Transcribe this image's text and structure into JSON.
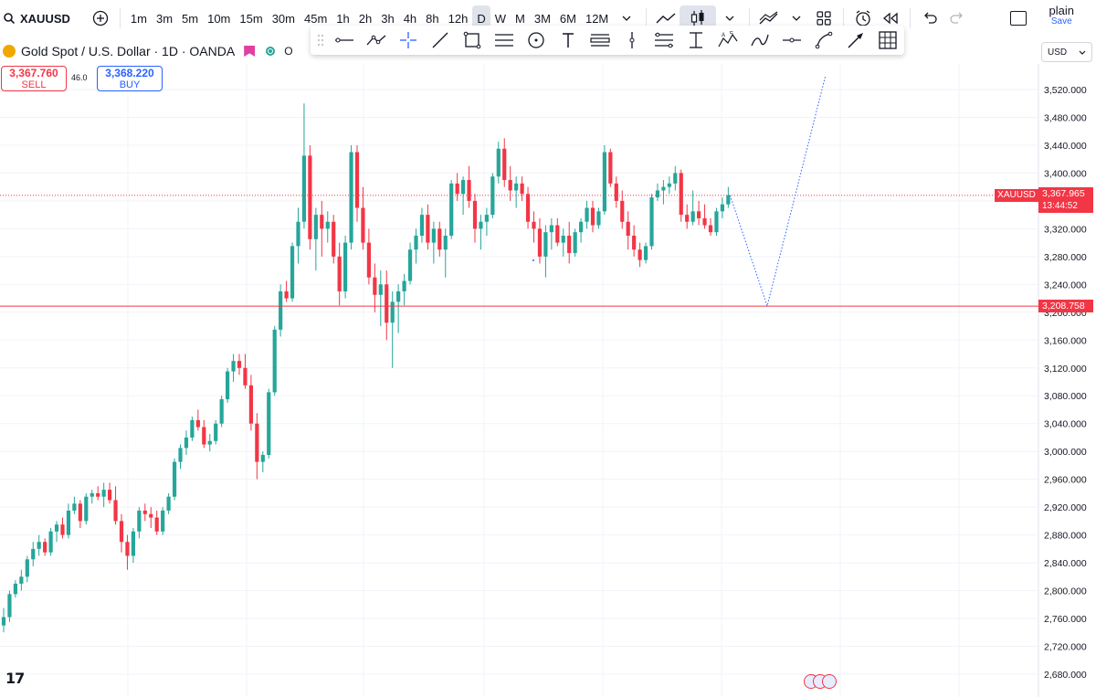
{
  "toolbar": {
    "symbol": "XAUUSD",
    "intervals": [
      "1m",
      "3m",
      "5m",
      "10m",
      "15m",
      "30m",
      "45m",
      "1h",
      "2h",
      "3h",
      "4h",
      "8h",
      "12h",
      "D",
      "W",
      "M",
      "3M",
      "6M",
      "12M"
    ],
    "active_interval": "D",
    "layout_name": "plain",
    "save_label": "Save"
  },
  "header": {
    "title": "Gold Spot / U.S. Dollar · 1D · OANDA",
    "open_prefix": "O"
  },
  "trade": {
    "sell_price": "3,367.760",
    "sell_label": "SELL",
    "spread": "46.0",
    "buy_price": "3,368.220",
    "buy_label": "BUY"
  },
  "currency": "USD",
  "colors": {
    "up": "#26a69a",
    "down": "#f23645",
    "accent": "#2962ff"
  },
  "price_tags": {
    "symbol_tag": "XAUUSD",
    "current_price": "3,367.965",
    "countdown": "13:44:52",
    "hline_price": "3,208.758"
  },
  "chart_data": {
    "type": "candlestick",
    "symbol": "XAUUSD",
    "interval": "1D",
    "y_axis_ticks": [
      3520,
      3480,
      3440,
      3400,
      3360,
      3320,
      3280,
      3240,
      3200,
      3160,
      3120,
      3080,
      3040,
      3000,
      2960,
      2920,
      2880,
      2840,
      2800,
      2760,
      2720,
      2680
    ],
    "y_axis_labels": [
      "3,520.000",
      "3,480.000",
      "3,440.000",
      "3,400.000",
      "3,360.000",
      "3,320.000",
      "3,280.000",
      "3,240.000",
      "3,200.000",
      "3,160.000",
      "3,120.000",
      "3,080.000",
      "3,040.000",
      "3,000.000",
      "2,960.000",
      "2,920.000",
      "2,880.000",
      "2,840.000",
      "2,800.000",
      "2,760.000",
      "2,720.000",
      "2,680.000"
    ],
    "ylim": [
      2670,
      3560
    ],
    "horizontal_line": 3208.758,
    "current_price": 3367.965,
    "projection": [
      [
        0,
        3368
      ],
      [
        7,
        3209
      ],
      [
        18,
        3540
      ]
    ],
    "candles": [
      [
        2750,
        2775,
        2740,
        2762
      ],
      [
        2762,
        2800,
        2755,
        2795
      ],
      [
        2795,
        2815,
        2790,
        2810
      ],
      [
        2810,
        2830,
        2800,
        2820
      ],
      [
        2820,
        2850,
        2812,
        2845
      ],
      [
        2845,
        2870,
        2835,
        2860
      ],
      [
        2860,
        2880,
        2850,
        2870
      ],
      [
        2870,
        2875,
        2850,
        2855
      ],
      [
        2855,
        2890,
        2850,
        2885
      ],
      [
        2885,
        2900,
        2870,
        2895
      ],
      [
        2895,
        2905,
        2875,
        2880
      ],
      [
        2880,
        2925,
        2875,
        2915
      ],
      [
        2915,
        2935,
        2910,
        2925
      ],
      [
        2925,
        2930,
        2890,
        2900
      ],
      [
        2900,
        2940,
        2895,
        2935
      ],
      [
        2935,
        2945,
        2925,
        2940
      ],
      [
        2940,
        2950,
        2930,
        2935
      ],
      [
        2935,
        2955,
        2920,
        2945
      ],
      [
        2945,
        2955,
        2925,
        2930
      ],
      [
        2930,
        2950,
        2895,
        2900
      ],
      [
        2900,
        2910,
        2855,
        2870
      ],
      [
        2870,
        2880,
        2830,
        2850
      ],
      [
        2850,
        2890,
        2840,
        2885
      ],
      [
        2885,
        2920,
        2875,
        2915
      ],
      [
        2915,
        2925,
        2900,
        2910
      ],
      [
        2910,
        2920,
        2890,
        2905
      ],
      [
        2905,
        2915,
        2880,
        2885
      ],
      [
        2885,
        2920,
        2880,
        2915
      ],
      [
        2915,
        2940,
        2910,
        2935
      ],
      [
        2935,
        2990,
        2930,
        2985
      ],
      [
        2985,
        3010,
        2975,
        3005
      ],
      [
        3005,
        3030,
        2995,
        3020
      ],
      [
        3020,
        3050,
        3015,
        3045
      ],
      [
        3045,
        3060,
        3030,
        3035
      ],
      [
        3035,
        3045,
        3005,
        3010
      ],
      [
        3010,
        3025,
        3000,
        3015
      ],
      [
        3015,
        3045,
        3010,
        3040
      ],
      [
        3040,
        3080,
        3035,
        3075
      ],
      [
        3075,
        3120,
        3070,
        3115
      ],
      [
        3115,
        3140,
        3100,
        3130
      ],
      [
        3130,
        3140,
        3110,
        3120
      ],
      [
        3120,
        3140,
        3090,
        3095
      ],
      [
        3095,
        3110,
        3030,
        3040
      ],
      [
        3040,
        3055,
        2960,
        2985
      ],
      [
        2985,
        3000,
        2970,
        2995
      ],
      [
        2995,
        3090,
        2990,
        3085
      ],
      [
        3085,
        3180,
        3080,
        3175
      ],
      [
        3175,
        3240,
        3165,
        3230
      ],
      [
        3230,
        3245,
        3215,
        3220
      ],
      [
        3220,
        3300,
        3215,
        3295
      ],
      [
        3295,
        3350,
        3270,
        3330
      ],
      [
        3330,
        3500,
        3320,
        3425
      ],
      [
        3425,
        3440,
        3290,
        3305
      ],
      [
        3305,
        3350,
        3260,
        3340
      ],
      [
        3340,
        3360,
        3280,
        3320
      ],
      [
        3320,
        3345,
        3300,
        3330
      ],
      [
        3330,
        3340,
        3270,
        3280
      ],
      [
        3280,
        3300,
        3210,
        3230
      ],
      [
        3230,
        3310,
        3220,
        3300
      ],
      [
        3300,
        3440,
        3290,
        3430
      ],
      [
        3430,
        3440,
        3330,
        3350
      ],
      [
        3350,
        3380,
        3290,
        3300
      ],
      [
        3300,
        3320,
        3240,
        3250
      ],
      [
        3250,
        3270,
        3200,
        3225
      ],
      [
        3225,
        3260,
        3180,
        3240
      ],
      [
        3240,
        3260,
        3160,
        3185
      ],
      [
        3185,
        3230,
        3120,
        3215
      ],
      [
        3215,
        3240,
        3170,
        3230
      ],
      [
        3230,
        3255,
        3210,
        3245
      ],
      [
        3245,
        3300,
        3240,
        3290
      ],
      [
        3290,
        3320,
        3270,
        3310
      ],
      [
        3310,
        3350,
        3300,
        3340
      ],
      [
        3340,
        3355,
        3290,
        3300
      ],
      [
        3300,
        3330,
        3270,
        3320
      ],
      [
        3320,
        3330,
        3280,
        3290
      ],
      [
        3290,
        3320,
        3250,
        3310
      ],
      [
        3310,
        3390,
        3305,
        3385
      ],
      [
        3385,
        3400,
        3360,
        3370
      ],
      [
        3370,
        3395,
        3340,
        3390
      ],
      [
        3390,
        3410,
        3350,
        3360
      ],
      [
        3360,
        3370,
        3300,
        3320
      ],
      [
        3320,
        3340,
        3290,
        3330
      ],
      [
        3330,
        3350,
        3310,
        3340
      ],
      [
        3340,
        3400,
        3335,
        3395
      ],
      [
        3395,
        3445,
        3385,
        3435
      ],
      [
        3435,
        3450,
        3380,
        3390
      ],
      [
        3390,
        3410,
        3360,
        3375
      ],
      [
        3375,
        3395,
        3350,
        3385
      ],
      [
        3385,
        3395,
        3360,
        3370
      ],
      [
        3370,
        3380,
        3320,
        3330
      ],
      [
        3330,
        3345,
        3300,
        3320
      ],
      [
        3320,
        3335,
        3270,
        3280
      ],
      [
        3280,
        3325,
        3250,
        3315
      ],
      [
        3315,
        3335,
        3290,
        3325
      ],
      [
        3325,
        3335,
        3295,
        3300
      ],
      [
        3300,
        3320,
        3280,
        3310
      ],
      [
        3310,
        3330,
        3270,
        3285
      ],
      [
        3285,
        3320,
        3280,
        3315
      ],
      [
        3315,
        3335,
        3300,
        3330
      ],
      [
        3330,
        3360,
        3320,
        3350
      ],
      [
        3350,
        3360,
        3315,
        3325
      ],
      [
        3325,
        3350,
        3320,
        3345
      ],
      [
        3345,
        3440,
        3340,
        3430
      ],
      [
        3430,
        3435,
        3380,
        3385
      ],
      [
        3385,
        3395,
        3350,
        3360
      ],
      [
        3360,
        3375,
        3320,
        3330
      ],
      [
        3330,
        3345,
        3290,
        3310
      ],
      [
        3310,
        3325,
        3280,
        3290
      ],
      [
        3290,
        3300,
        3265,
        3275
      ],
      [
        3275,
        3300,
        3270,
        3295
      ],
      [
        3295,
        3370,
        3290,
        3365
      ],
      [
        3365,
        3385,
        3360,
        3375
      ],
      [
        3375,
        3390,
        3355,
        3380
      ],
      [
        3380,
        3395,
        3370,
        3385
      ],
      [
        3385,
        3410,
        3375,
        3400
      ],
      [
        3400,
        3405,
        3330,
        3340
      ],
      [
        3340,
        3355,
        3320,
        3330
      ],
      [
        3330,
        3375,
        3325,
        3345
      ],
      [
        3345,
        3360,
        3325,
        3335
      ],
      [
        3335,
        3355,
        3320,
        3325
      ],
      [
        3325,
        3335,
        3310,
        3315
      ],
      [
        3315,
        3350,
        3310,
        3345
      ],
      [
        3345,
        3365,
        3335,
        3355
      ],
      [
        3355,
        3380,
        3350,
        3368
      ]
    ]
  }
}
